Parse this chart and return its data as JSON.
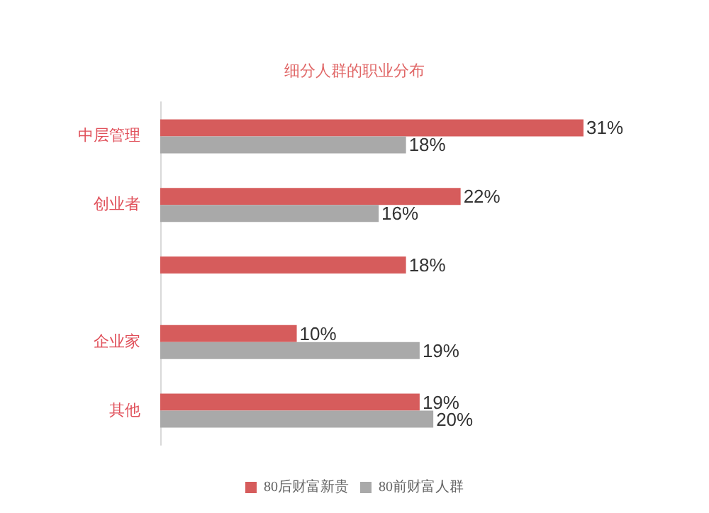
{
  "chart_data": {
    "type": "bar",
    "orientation": "horizontal",
    "title": "细分人群的职业分布",
    "categories": [
      "中层管理",
      "创业者",
      null,
      "企业家",
      "其他"
    ],
    "series": [
      {
        "name": "80后财富新贵",
        "color": "#d65c5c",
        "values": [
          31,
          22,
          18,
          10,
          19
        ],
        "value_labels": [
          "31%",
          "22%",
          "18%",
          "10%",
          "19%"
        ]
      },
      {
        "name": "80前财富人群",
        "color": "#a9a9a9",
        "values": [
          18,
          16,
          null,
          19,
          20
        ],
        "value_labels": [
          "18%",
          "16%",
          null,
          "19%",
          "20%"
        ]
      }
    ],
    "tick_labels": "y",
    "grid": false,
    "legend": "bottom"
  }
}
